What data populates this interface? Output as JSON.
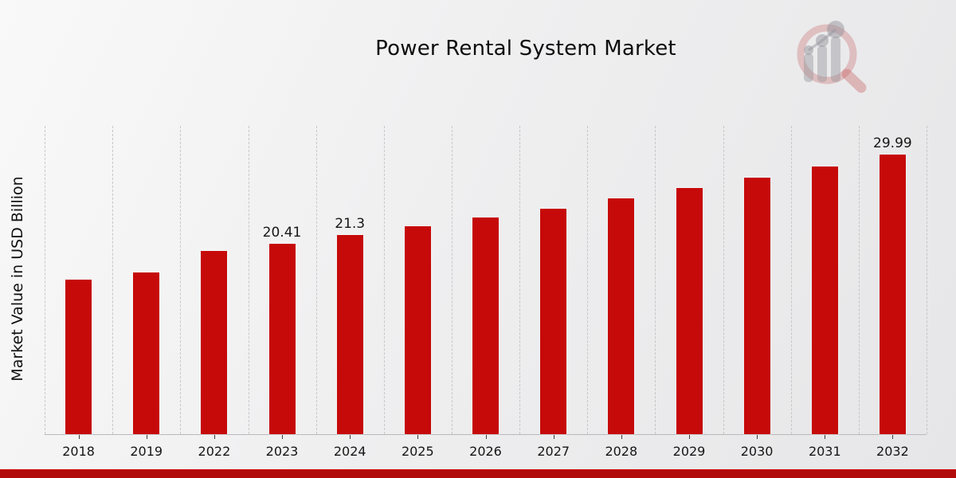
{
  "chart_data": {
    "type": "bar",
    "title": "Power Rental System Market",
    "ylabel": "Market Value in USD Billion",
    "xlabel": "",
    "categories": [
      "2018",
      "2019",
      "2022",
      "2023",
      "2024",
      "2025",
      "2026",
      "2027",
      "2028",
      "2029",
      "2030",
      "2031",
      "2032"
    ],
    "values": [
      16.6,
      17.3,
      19.6,
      20.41,
      21.3,
      22.3,
      23.2,
      24.2,
      25.3,
      26.4,
      27.5,
      28.7,
      29.99
    ],
    "bar_labels": [
      "",
      "",
      "",
      "20.41",
      "21.3",
      "",
      "",
      "",
      "",
      "",
      "",
      "",
      "29.99"
    ],
    "ylim": [
      0,
      33.2
    ],
    "grid": "vertical-dashed",
    "legend": "none",
    "colors": {
      "bar": "#c60909",
      "accent_band": "#b20b0b",
      "gridline": "#c7c7c9",
      "axis_line": "#b9b9bb",
      "text": "#0d0d0d"
    },
    "watermark_icon": "magnifier-bar-chart-logo"
  }
}
